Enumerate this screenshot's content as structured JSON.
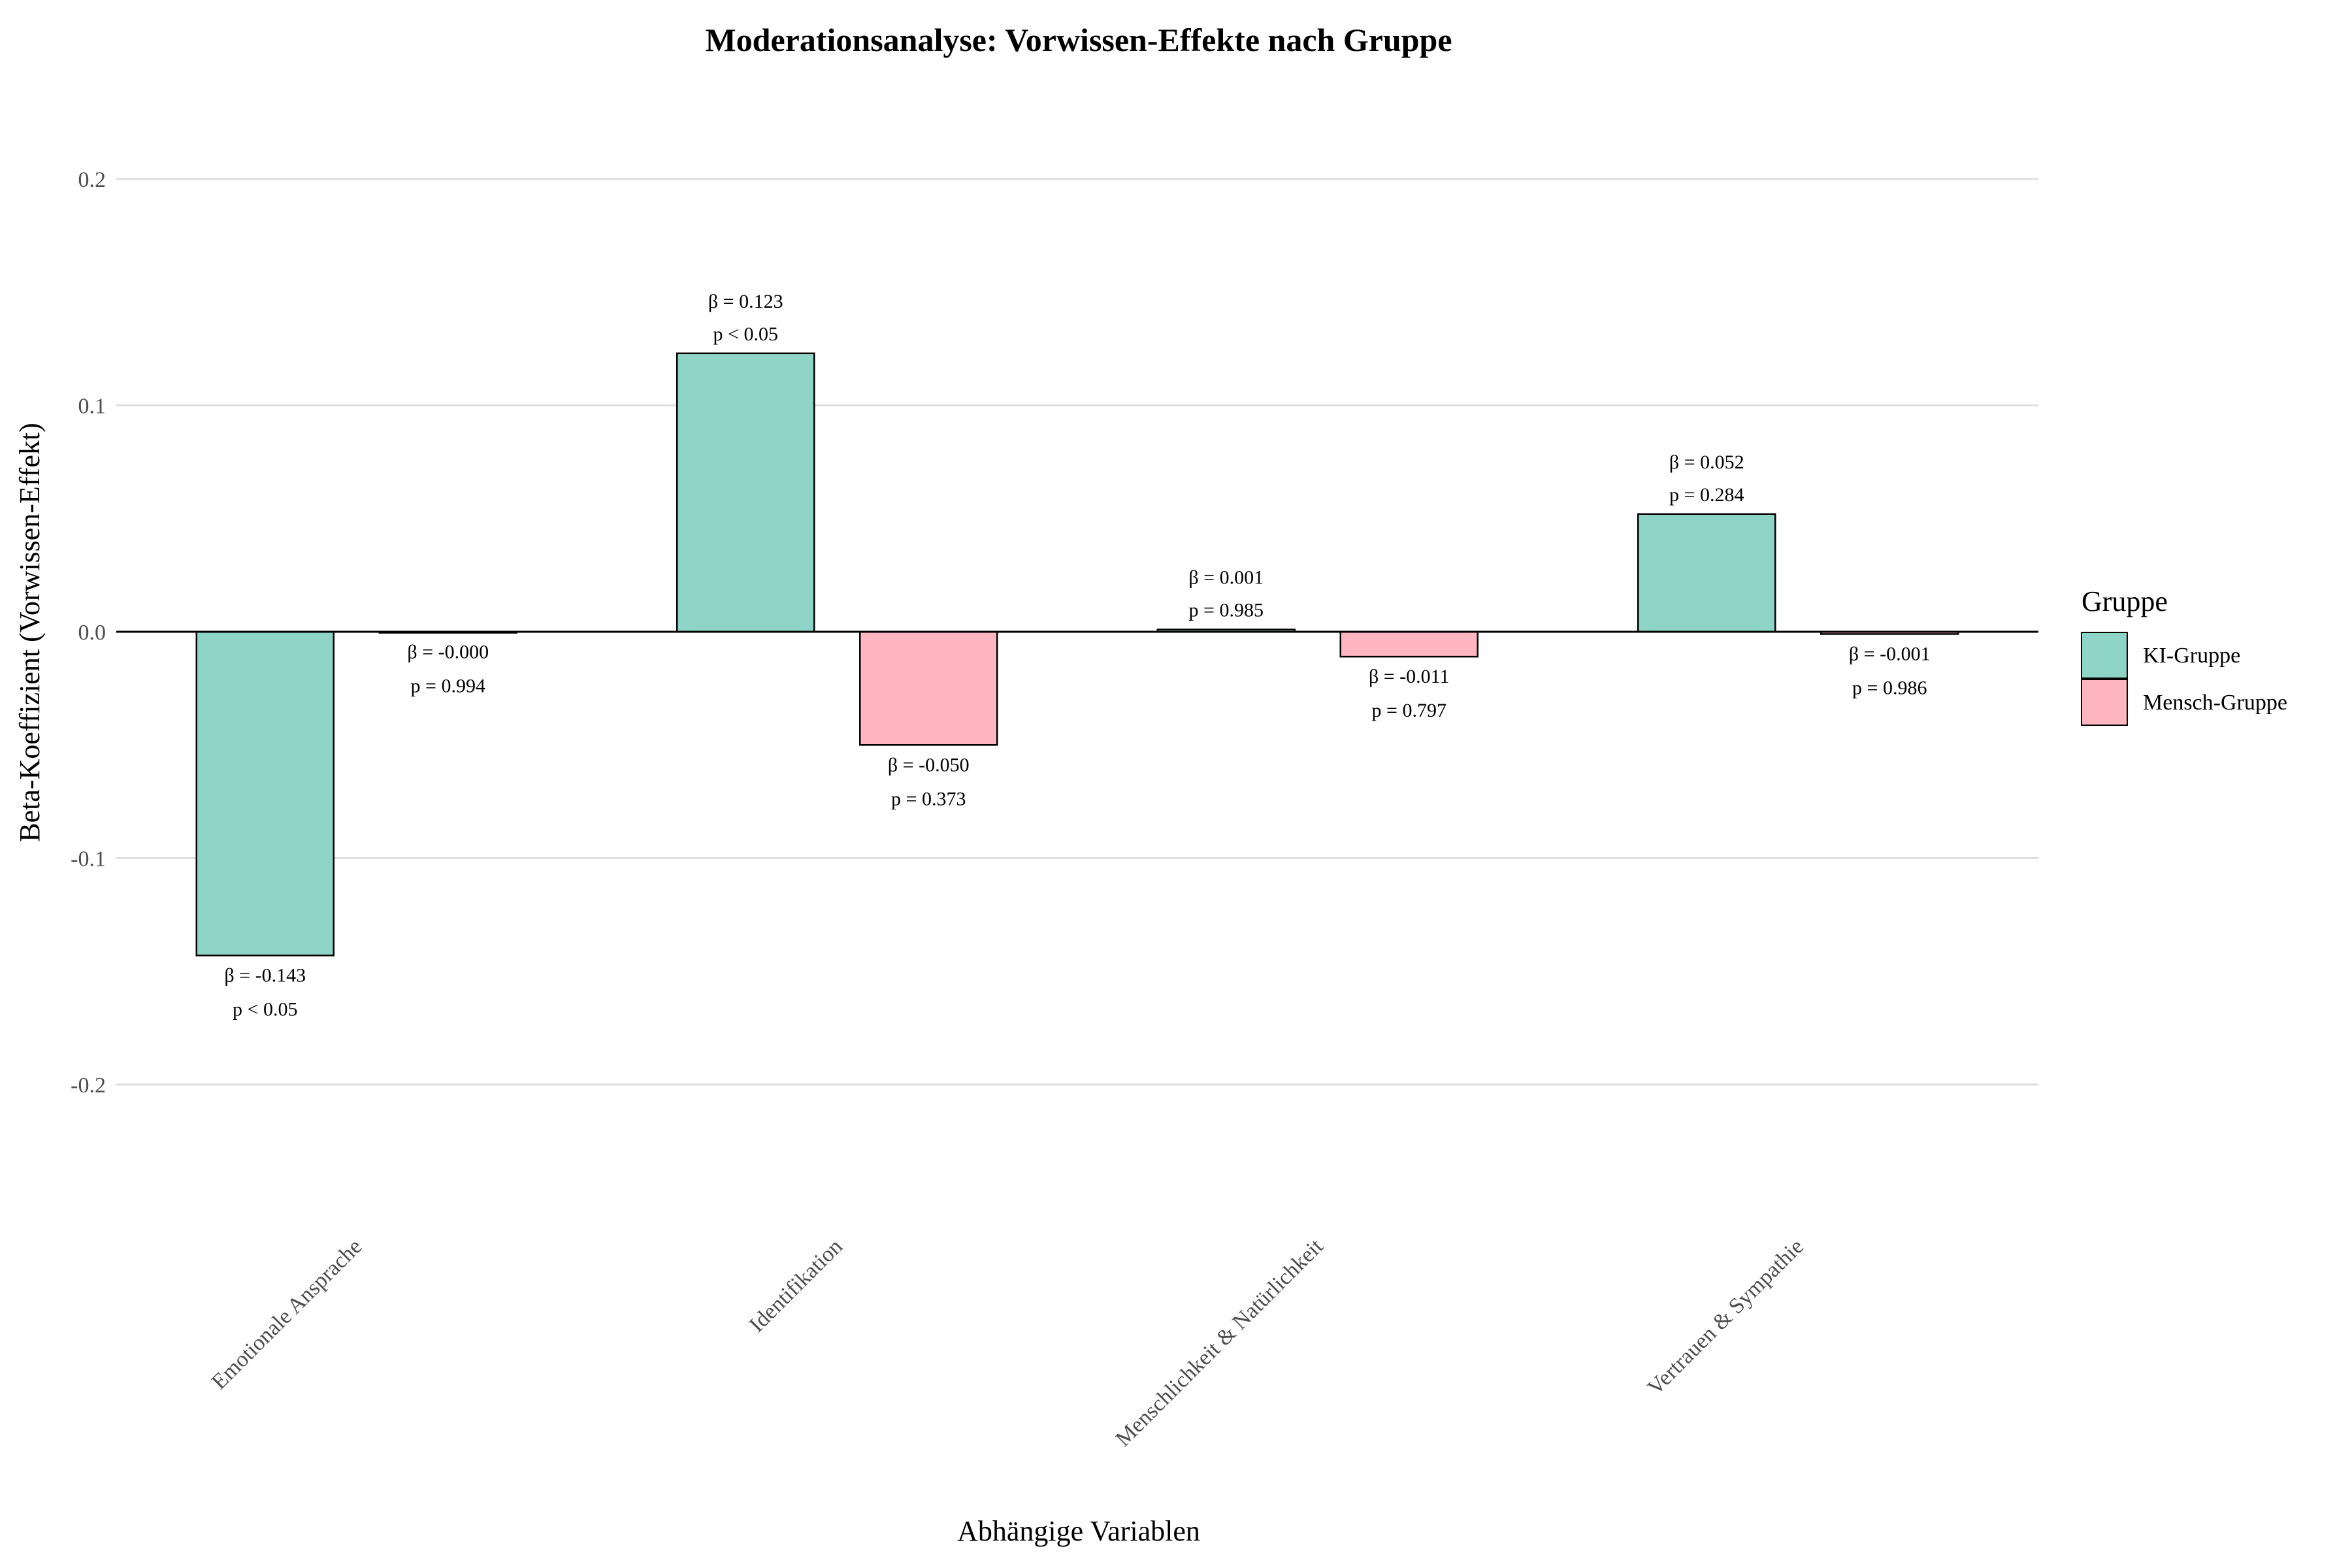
{
  "chart_data": {
    "type": "bar",
    "title": "Moderationsanalyse: Vorwissen-Effekte nach Gruppe",
    "xlabel": "Abhängige Variablen",
    "ylabel": "Beta-Koeffizient (Vorwissen-Effekt)",
    "ylim": [
      -0.2,
      0.2
    ],
    "yticks": [
      "0.2",
      "0.1",
      "0.0",
      "-0.1",
      "-0.2"
    ],
    "ytick_values": [
      0.2,
      0.1,
      0.0,
      -0.1,
      -0.2
    ],
    "grid": true,
    "legend_position": "right",
    "legend_title": "Gruppe",
    "categories": [
      "Emotionale Ansprache",
      "Identifikation",
      "Menschlichkeit & Natürlichkeit",
      "Vertrauen & Sympathie"
    ],
    "series": [
      {
        "name": "KI-Gruppe",
        "color": "#8ed5c8",
        "values": [
          -0.143,
          0.123,
          0.001,
          0.052
        ],
        "beta_labels": [
          "β = -0.143",
          "β = 0.123",
          "β = 0.001",
          "β = 0.052"
        ],
        "p_labels": [
          "p < 0.05",
          "p < 0.05",
          "p = 0.985",
          "p = 0.284"
        ]
      },
      {
        "name": "Mensch-Gruppe",
        "color": "#ffb6c1",
        "values": [
          -0.0001,
          -0.05,
          -0.011,
          -0.001
        ],
        "beta_labels": [
          "β = -0.000",
          "β = -0.050",
          "β = -0.011",
          "β = -0.001"
        ],
        "p_labels": [
          "p = 0.994",
          "p = 0.373",
          "p = 0.797",
          "p = 0.986"
        ]
      }
    ]
  }
}
